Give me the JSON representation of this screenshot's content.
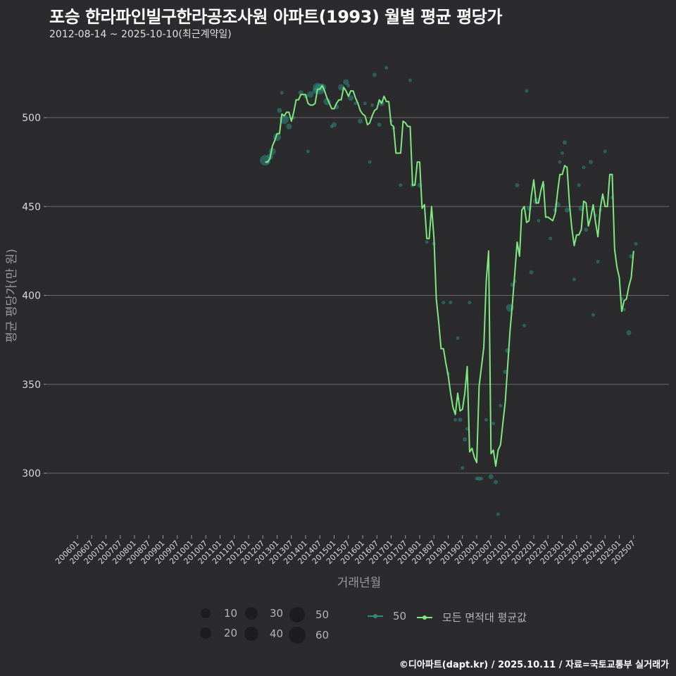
{
  "header": {
    "title": "포승 한라파인빌구한라공조사원 아파트(1993) 월별 평균 평당가",
    "subtitle": "2012-08-14 ~ 2025-10-10(최근계약일)"
  },
  "footer": {
    "credit": "©디아파트(dapt.kr) / 2025.10.11 / 자료=국토교통부 실거래가"
  },
  "colors": {
    "background": "#2b2b2d",
    "line": "#7ee87e",
    "scatter": "#2e8b82",
    "grid": "#6a6a6a"
  },
  "legend": {
    "size_items": [
      {
        "label": "10",
        "size": 14
      },
      {
        "label": "20",
        "size": 16
      },
      {
        "label": "30",
        "size": 18
      },
      {
        "label": "40",
        "size": 20
      },
      {
        "label": "50",
        "size": 22
      },
      {
        "label": "60",
        "size": 24
      }
    ],
    "series_items": [
      {
        "label": "50",
        "color": "#2e8b82"
      },
      {
        "label": "모든 면적대 평균값",
        "color": "#7ee87e"
      }
    ]
  },
  "chart_data": {
    "type": "line",
    "title": "포승 한라파인빌구한라공조사원 아파트(1993) 월별 평균 평당가",
    "subtitle": "2012-08-14 ~ 2025-10-10(최근계약일)",
    "xlabel": "거래년월",
    "ylabel": "평균 평당가(만 원)",
    "ylim": [
      262,
      535
    ],
    "yticks": [
      300,
      350,
      400,
      450,
      500
    ],
    "grid": true,
    "legend_position": "bottom",
    "x_tick_labels": [
      "200601",
      "200607",
      "200701",
      "200707",
      "200801",
      "200807",
      "200901",
      "200907",
      "201001",
      "201007",
      "201101",
      "201107",
      "201201",
      "201207",
      "201301",
      "201307",
      "201401",
      "201407",
      "201501",
      "201507",
      "201601",
      "201607",
      "201701",
      "201707",
      "201801",
      "201807",
      "201901",
      "201907",
      "202001",
      "202007",
      "202101",
      "202107",
      "202201",
      "202207",
      "202301",
      "202307",
      "202401",
      "202407",
      "202501",
      "202507"
    ],
    "series": [
      {
        "name": "모든 면적대 평균값",
        "points": [
          [
            "2012-08",
            475
          ],
          [
            "2012-09",
            475
          ],
          [
            "2012-10",
            477
          ],
          [
            "2012-11",
            484
          ],
          [
            "2012-12",
            487
          ],
          [
            "2013-01",
            491
          ],
          [
            "2013-02",
            491
          ],
          [
            "2013-03",
            502
          ],
          [
            "2013-04",
            501
          ],
          [
            "2013-05",
            503
          ],
          [
            "2013-06",
            503
          ],
          [
            "2013-07",
            498
          ],
          [
            "2013-08",
            503
          ],
          [
            "2013-09",
            510
          ],
          [
            "2013-10",
            510
          ],
          [
            "2013-11",
            513
          ],
          [
            "2013-12",
            513
          ],
          [
            "2014-01",
            513
          ],
          [
            "2014-02",
            508
          ],
          [
            "2014-03",
            507
          ],
          [
            "2014-04",
            507
          ],
          [
            "2014-05",
            508
          ],
          [
            "2014-06",
            516
          ],
          [
            "2014-07",
            516
          ],
          [
            "2014-08",
            518
          ],
          [
            "2014-09",
            515
          ],
          [
            "2014-10",
            511
          ],
          [
            "2014-11",
            508
          ],
          [
            "2014-12",
            505
          ],
          [
            "2015-01",
            505
          ],
          [
            "2015-02",
            508
          ],
          [
            "2015-03",
            510
          ],
          [
            "2015-04",
            510
          ],
          [
            "2015-05",
            517
          ],
          [
            "2015-06",
            515
          ],
          [
            "2015-07",
            512
          ],
          [
            "2015-08",
            515
          ],
          [
            "2015-09",
            515
          ],
          [
            "2015-10",
            511
          ],
          [
            "2015-11",
            508
          ],
          [
            "2015-12",
            504
          ],
          [
            "2016-01",
            502
          ],
          [
            "2016-02",
            501
          ],
          [
            "2016-03",
            496
          ],
          [
            "2016-04",
            497
          ],
          [
            "2016-05",
            501
          ],
          [
            "2016-06",
            504
          ],
          [
            "2016-07",
            505
          ],
          [
            "2016-08",
            510
          ],
          [
            "2016-09",
            508
          ],
          [
            "2016-10",
            512
          ],
          [
            "2016-11",
            509
          ],
          [
            "2016-12",
            509
          ],
          [
            "2017-01",
            496
          ],
          [
            "2017-02",
            495
          ],
          [
            "2017-03",
            480
          ],
          [
            "2017-04",
            480
          ],
          [
            "2017-05",
            480
          ],
          [
            "2017-06",
            498
          ],
          [
            "2017-07",
            497
          ],
          [
            "2017-08",
            495
          ],
          [
            "2017-09",
            495
          ],
          [
            "2017-10",
            462
          ],
          [
            "2017-11",
            462
          ],
          [
            "2017-12",
            475
          ],
          [
            "2018-01",
            475
          ],
          [
            "2018-02",
            449
          ],
          [
            "2018-03",
            451
          ],
          [
            "2018-04",
            432
          ],
          [
            "2018-05",
            432
          ],
          [
            "2018-06",
            450
          ],
          [
            "2018-07",
            432
          ],
          [
            "2018-08",
            398
          ],
          [
            "2018-09",
            385
          ],
          [
            "2018-10",
            370
          ],
          [
            "2018-11",
            370
          ],
          [
            "2018-12",
            362
          ],
          [
            "2019-01",
            355
          ],
          [
            "2019-02",
            345
          ],
          [
            "2019-03",
            337
          ],
          [
            "2019-04",
            333
          ],
          [
            "2019-05",
            345
          ],
          [
            "2019-06",
            335
          ],
          [
            "2019-07",
            336
          ],
          [
            "2019-08",
            345
          ],
          [
            "2019-09",
            360
          ],
          [
            "2019-10",
            312
          ],
          [
            "2019-11",
            314
          ],
          [
            "2019-12",
            309
          ],
          [
            "2020-01",
            306
          ],
          [
            "2020-02",
            349
          ],
          [
            "2020-03",
            360
          ],
          [
            "2020-04",
            371
          ],
          [
            "2020-05",
            408
          ],
          [
            "2020-06",
            425
          ],
          [
            "2020-07",
            311
          ],
          [
            "2020-08",
            313
          ],
          [
            "2020-09",
            304
          ],
          [
            "2020-10",
            313
          ],
          [
            "2020-11",
            316
          ],
          [
            "2020-12",
            328
          ],
          [
            "2021-01",
            340
          ],
          [
            "2021-02",
            360
          ],
          [
            "2021-03",
            380
          ],
          [
            "2021-04",
            395
          ],
          [
            "2021-05",
            412
          ],
          [
            "2021-06",
            430
          ],
          [
            "2021-07",
            422
          ],
          [
            "2021-08",
            448
          ],
          [
            "2021-09",
            450
          ],
          [
            "2021-10",
            441
          ],
          [
            "2021-11",
            442
          ],
          [
            "2021-12",
            456
          ],
          [
            "2022-01",
            465
          ],
          [
            "2022-02",
            452
          ],
          [
            "2022-03",
            452
          ],
          [
            "2022-04",
            459
          ],
          [
            "2022-05",
            464
          ],
          [
            "2022-06",
            444
          ],
          [
            "2022-07",
            444
          ],
          [
            "2022-08",
            443
          ],
          [
            "2022-09",
            442
          ],
          [
            "2022-10",
            446
          ],
          [
            "2022-11",
            458
          ],
          [
            "2022-12",
            468
          ],
          [
            "2023-01",
            468
          ],
          [
            "2023-02",
            473
          ],
          [
            "2023-03",
            472
          ],
          [
            "2023-04",
            452
          ],
          [
            "2023-05",
            438
          ],
          [
            "2023-06",
            428
          ],
          [
            "2023-07",
            434
          ],
          [
            "2023-08",
            434
          ],
          [
            "2023-09",
            437
          ],
          [
            "2023-10",
            453
          ],
          [
            "2023-11",
            452
          ],
          [
            "2023-12",
            439
          ],
          [
            "2024-01",
            444
          ],
          [
            "2024-02",
            451
          ],
          [
            "2024-03",
            441
          ],
          [
            "2024-04",
            433
          ],
          [
            "2024-05",
            449
          ],
          [
            "2024-06",
            457
          ],
          [
            "2024-07",
            450
          ],
          [
            "2024-08",
            450
          ],
          [
            "2024-09",
            468
          ],
          [
            "2024-10",
            468
          ],
          [
            "2024-11",
            426
          ],
          [
            "2024-12",
            416
          ],
          [
            "2025-01",
            410
          ],
          [
            "2025-02",
            391
          ],
          [
            "2025-03",
            397
          ],
          [
            "2025-04",
            398
          ],
          [
            "2025-05",
            405
          ],
          [
            "2025-06",
            410
          ],
          [
            "2025-07",
            425
          ]
        ]
      },
      {
        "name": "50",
        "type": "scatter",
        "points": [
          [
            "2012-08",
            476,
            30
          ],
          [
            "2012-09",
            475,
            12
          ],
          [
            "2012-10",
            478,
            18
          ],
          [
            "2012-11",
            481,
            20
          ],
          [
            "2013-01",
            489,
            22
          ],
          [
            "2013-02",
            504,
            14
          ],
          [
            "2013-03",
            514,
            8
          ],
          [
            "2013-04",
            499,
            26
          ],
          [
            "2013-06",
            495,
            16
          ],
          [
            "2013-08",
            500,
            10
          ],
          [
            "2013-11",
            514,
            14
          ],
          [
            "2014-01",
            512,
            12
          ],
          [
            "2014-02",
            481,
            8
          ],
          [
            "2014-03",
            513,
            18
          ],
          [
            "2014-05",
            515,
            16
          ],
          [
            "2014-06",
            517,
            26
          ],
          [
            "2014-07",
            516,
            30
          ],
          [
            "2014-08",
            517,
            22
          ],
          [
            "2014-10",
            509,
            20
          ],
          [
            "2014-12",
            495,
            10
          ],
          [
            "2015-01",
            496,
            14
          ],
          [
            "2015-02",
            506,
            14
          ],
          [
            "2015-04",
            517,
            18
          ],
          [
            "2015-06",
            520,
            16
          ],
          [
            "2015-07",
            518,
            10
          ],
          [
            "2015-08",
            511,
            16
          ],
          [
            "2015-10",
            508,
            10
          ],
          [
            "2015-12",
            498,
            14
          ],
          [
            "2016-02",
            508,
            8
          ],
          [
            "2016-04",
            475,
            8
          ],
          [
            "2016-05",
            507,
            10
          ],
          [
            "2016-06",
            524,
            12
          ],
          [
            "2016-08",
            496,
            12
          ],
          [
            "2016-09",
            508,
            16
          ],
          [
            "2016-11",
            528,
            8
          ],
          [
            "2017-01",
            498,
            10
          ],
          [
            "2017-02",
            494,
            8
          ],
          [
            "2017-05",
            462,
            8
          ],
          [
            "2017-09",
            521,
            8
          ],
          [
            "2017-10",
            462,
            12
          ],
          [
            "2018-01",
            462,
            14
          ],
          [
            "2018-04",
            430,
            10
          ],
          [
            "2018-07",
            429,
            8
          ],
          [
            "2018-11",
            396,
            8
          ],
          [
            "2019-01",
            356,
            8
          ],
          [
            "2019-02",
            396,
            8
          ],
          [
            "2019-04",
            330,
            8
          ],
          [
            "2019-05",
            376,
            8
          ],
          [
            "2019-06",
            330,
            12
          ],
          [
            "2019-07",
            303,
            8
          ],
          [
            "2019-08",
            319,
            12
          ],
          [
            "2019-09",
            325,
            8
          ],
          [
            "2019-10",
            396,
            8
          ],
          [
            "2020-01",
            297,
            8
          ],
          [
            "2020-02",
            297,
            12
          ],
          [
            "2020-03",
            297,
            8
          ],
          [
            "2020-05",
            330,
            8
          ],
          [
            "2020-07",
            298,
            14
          ],
          [
            "2020-08",
            328,
            10
          ],
          [
            "2020-09",
            295,
            12
          ],
          [
            "2020-10",
            277,
            8
          ],
          [
            "2020-11",
            338,
            10
          ],
          [
            "2021-01",
            357,
            12
          ],
          [
            "2021-02",
            369,
            14
          ],
          [
            "2021-03",
            393,
            22
          ],
          [
            "2021-04",
            406,
            12
          ],
          [
            "2021-05",
            408,
            8
          ],
          [
            "2021-06",
            462,
            12
          ],
          [
            "2021-09",
            383,
            8
          ],
          [
            "2021-10",
            515,
            10
          ],
          [
            "2021-11",
            449,
            14
          ],
          [
            "2021-12",
            413,
            12
          ],
          [
            "2022-02",
            453,
            18
          ],
          [
            "2022-03",
            442,
            10
          ],
          [
            "2022-05",
            462,
            10
          ],
          [
            "2022-08",
            432,
            10
          ],
          [
            "2022-10",
            448,
            12
          ],
          [
            "2022-11",
            451,
            16
          ],
          [
            "2022-12",
            475,
            10
          ],
          [
            "2023-01",
            480,
            8
          ],
          [
            "2023-02",
            486,
            12
          ],
          [
            "2023-03",
            448,
            14
          ],
          [
            "2023-06",
            409,
            8
          ],
          [
            "2023-08",
            462,
            8
          ],
          [
            "2023-09",
            449,
            16
          ],
          [
            "2023-10",
            472,
            10
          ],
          [
            "2023-11",
            437,
            12
          ],
          [
            "2024-01",
            475,
            12
          ],
          [
            "2024-02",
            389,
            8
          ],
          [
            "2024-03",
            445,
            10
          ],
          [
            "2024-04",
            419,
            10
          ],
          [
            "2024-05",
            448,
            10
          ],
          [
            "2024-07",
            481,
            8
          ],
          [
            "2024-10",
            455,
            8
          ],
          [
            "2025-02",
            398,
            10
          ],
          [
            "2025-03",
            392,
            10
          ],
          [
            "2025-05",
            379,
            14
          ],
          [
            "2025-06",
            422,
            12
          ],
          [
            "2025-08",
            429,
            8
          ]
        ]
      }
    ]
  }
}
